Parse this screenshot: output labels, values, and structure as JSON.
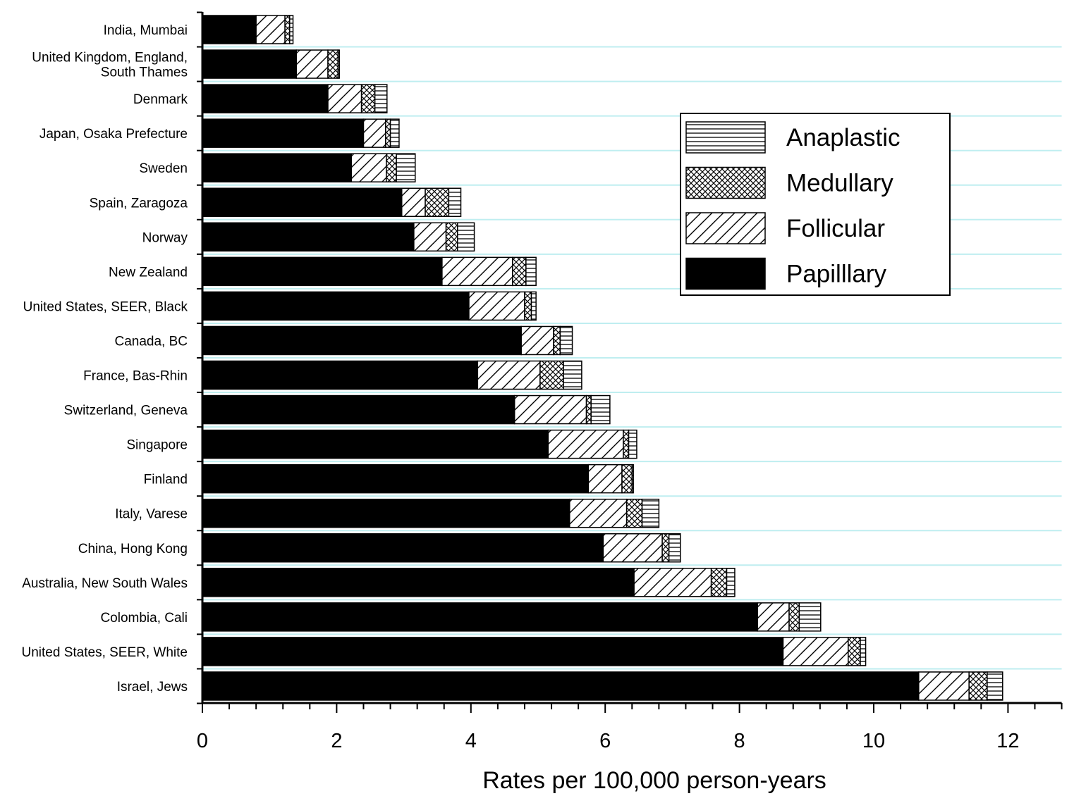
{
  "chart_data": {
    "type": "bar",
    "orientation": "horizontal",
    "stacked": true,
    "xlabel": "Rates per 100,000 person-years",
    "xlim": [
      0,
      12.8
    ],
    "xticks": [
      0,
      2,
      4,
      6,
      8,
      10,
      12
    ],
    "grid": "horizontal",
    "categories": [
      "India, Mumbai",
      "United Kingdom, England,\nSouth Thames",
      "Denmark",
      "Japan, Osaka Prefecture",
      "Sweden",
      "Spain, Zaragoza",
      "Norway",
      "New Zealand",
      "United States, SEER, Black",
      "Canada, BC",
      "France, Bas-Rhin",
      "Switzerland, Geneva",
      "Singapore",
      "Finland",
      "Italy, Varese",
      "China, Hong Kong",
      "Australia, New South Wales",
      "Colombia, Cali",
      "United States, SEER, White",
      "Israel, Jews"
    ],
    "series": [
      {
        "name": "Papilllary",
        "pattern": "solid",
        "values": [
          0.8,
          1.4,
          1.87,
          2.4,
          2.22,
          2.97,
          3.15,
          3.57,
          3.97,
          4.75,
          4.1,
          4.65,
          5.15,
          5.75,
          5.47,
          5.97,
          6.43,
          8.27,
          8.65,
          10.67
        ]
      },
      {
        "name": "Follicular",
        "pattern": "diagonal",
        "values": [
          0.43,
          0.47,
          0.5,
          0.33,
          0.52,
          0.35,
          0.48,
          1.05,
          0.83,
          0.48,
          0.93,
          1.07,
          1.12,
          0.5,
          0.85,
          0.88,
          1.15,
          0.47,
          0.97,
          0.75
        ]
      },
      {
        "name": "Medullary",
        "pattern": "crosshatch",
        "values": [
          0.07,
          0.15,
          0.2,
          0.07,
          0.15,
          0.35,
          0.17,
          0.2,
          0.1,
          0.1,
          0.35,
          0.07,
          0.08,
          0.15,
          0.23,
          0.1,
          0.23,
          0.15,
          0.18,
          0.27
        ]
      },
      {
        "name": "Anaplastic",
        "pattern": "horizontal",
        "values": [
          0.05,
          0.02,
          0.18,
          0.13,
          0.28,
          0.18,
          0.25,
          0.15,
          0.07,
          0.18,
          0.27,
          0.28,
          0.12,
          0.02,
          0.25,
          0.17,
          0.12,
          0.32,
          0.08,
          0.23
        ]
      }
    ],
    "legend": {
      "placement": "top-right",
      "order": [
        "Anaplastic",
        "Medullary",
        "Follicular",
        "Papilllary"
      ]
    },
    "colors": {
      "bar_fill": "#000000",
      "pattern_bg": "#ffffff",
      "gridline": "#bfeef0",
      "axis": "#000000"
    }
  }
}
